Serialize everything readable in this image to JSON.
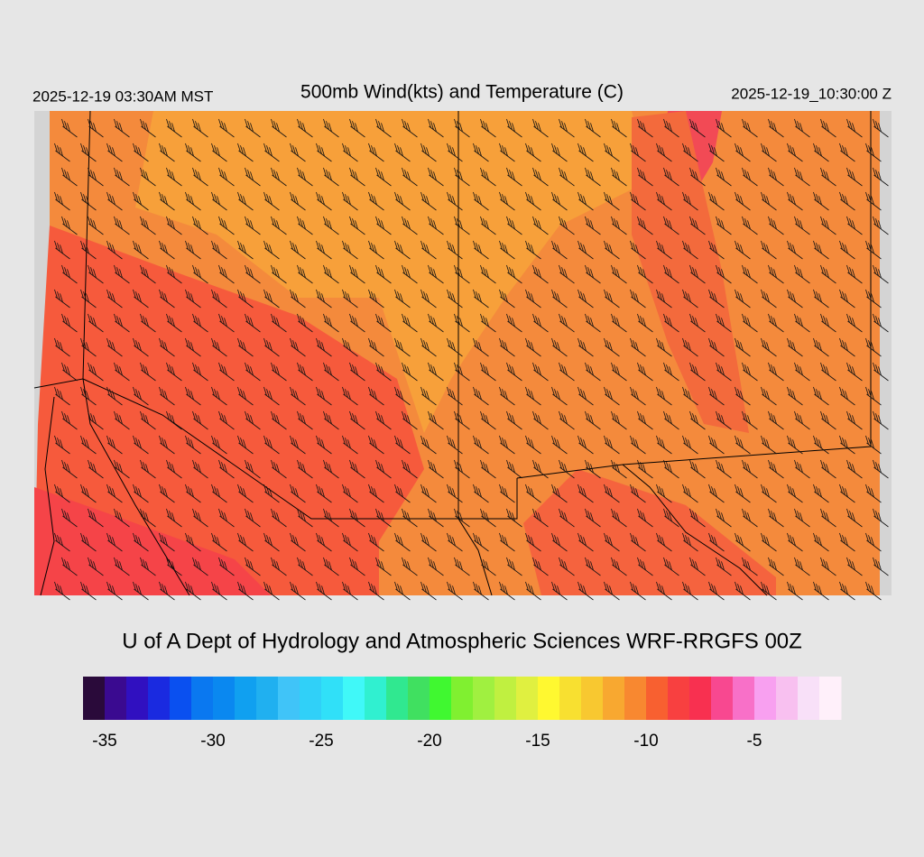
{
  "header": {
    "local_time": "2025-12-19 03:30AM MST",
    "title": "500mb Wind(kts) and Temperature (C)",
    "valid_time": "2025-12-19_10:30:00 Z"
  },
  "credit": "U of A Dept of Hydrology and Atmospheric Sciences WRF-RRGFS 00Z",
  "colorbar": {
    "xlim": [
      -36,
      -1
    ],
    "ticks": [
      -35,
      -30,
      -25,
      -20,
      -15,
      -10,
      -5
    ],
    "colors": [
      "#2a0a3a",
      "#3a0a90",
      "#3010c0",
      "#1a2ae0",
      "#0a50f0",
      "#0a78f0",
      "#0a88f0",
      "#10a0f0",
      "#20b0f0",
      "#40c4f8",
      "#30d0f8",
      "#30e0f8",
      "#40f8f8",
      "#30f0d0",
      "#30e890",
      "#40e060",
      "#40f830",
      "#80f030",
      "#a0f040",
      "#c0f040",
      "#e0f040",
      "#fff830",
      "#f8e030",
      "#f8c830",
      "#f8a830",
      "#f88830",
      "#f86030",
      "#f84040",
      "#f83050",
      "#f84890",
      "#f870c8",
      "#f8a0f0",
      "#f8c0f0",
      "#f8e0f8",
      "#fff0fa"
    ]
  }
}
